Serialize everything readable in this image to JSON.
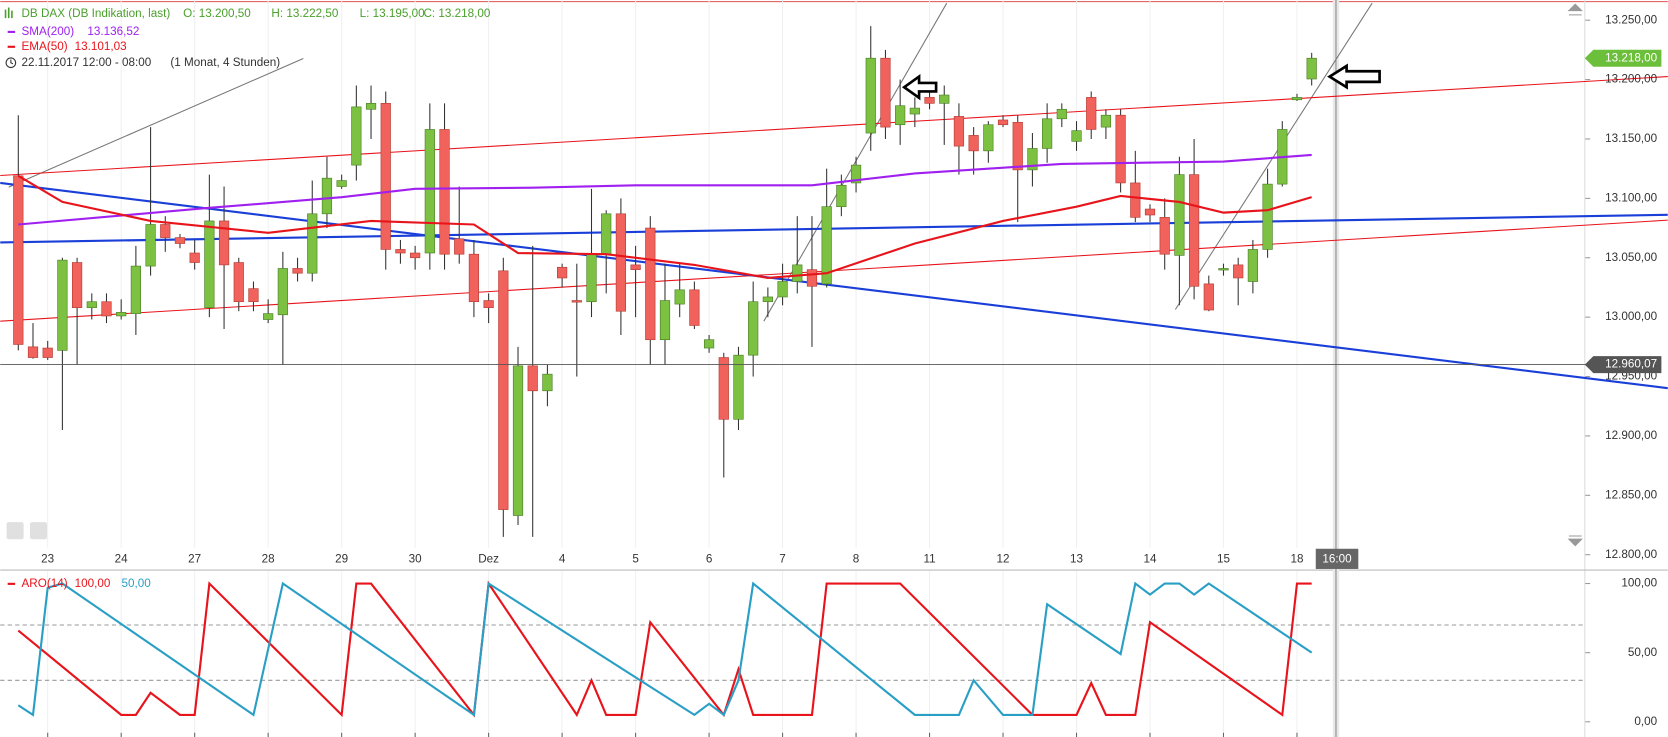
{
  "chart_data": {
    "type": "candlestick",
    "header": {
      "title": "DB DAX (DB Indikation, last)",
      "ohlc": [
        "O: 13.200,50",
        "H: 13.222,50",
        "L: 13.195,00",
        "C: 13.218,00"
      ],
      "date": "22.11.2017 12:00 - 08:00",
      "period": "(1 Monat, 4 Stunden)"
    },
    "categories": [
      null,
      null,
      "23",
      null,
      null,
      null,
      null,
      "24",
      null,
      null,
      null,
      null,
      "27",
      null,
      null,
      null,
      null,
      "28",
      null,
      null,
      null,
      null,
      "29",
      null,
      null,
      null,
      null,
      "30",
      null,
      null,
      null,
      null,
      "Dez",
      null,
      null,
      null,
      null,
      "4",
      null,
      null,
      null,
      null,
      "5",
      null,
      null,
      null,
      null,
      "6",
      null,
      null,
      null,
      null,
      "7",
      null,
      null,
      null,
      null,
      "8",
      null,
      null,
      null,
      null,
      "11",
      null,
      null,
      null,
      null,
      "12",
      null,
      null,
      null,
      null,
      "13",
      null,
      null,
      null,
      null,
      "14",
      null,
      null,
      null,
      null,
      "15",
      null,
      null,
      null,
      null,
      "18",
      null
    ],
    "open": [
      13119,
      12975,
      12974,
      12972,
      13046,
      13008,
      13013,
      13001,
      13003,
      13043,
      13078,
      13067,
      13054,
      13008,
      13081,
      13046,
      13024,
      12998,
      13002,
      13041,
      13037,
      13087,
      13110,
      13128,
      13175,
      13180,
      13057,
      13054,
      13054,
      13158,
      13066,
      13053,
      13014,
      13039,
      12833,
      12959,
      12938,
      13042,
      13014,
      13013,
      13053,
      13087,
      13044,
      13075,
      12981,
      13011,
      13023,
      12974,
      12966,
      12914,
      12968,
      13013,
      13017,
      13030,
      13040,
      13028,
      13093,
      13113,
      13155,
      13218,
      13162,
      13171,
      13185,
      13180,
      13169,
      13153,
      13140,
      13166,
      13164,
      13124,
      13142,
      13167,
      13148,
      13185,
      13160,
      13170,
      13113,
      13091,
      13084,
      13052,
      13120,
      13028,
      13041,
      13044,
      13030,
      13057,
      13112,
      13183,
      13200.5
    ],
    "high": [
      13170,
      12995,
      12980,
      13050,
      13050,
      13020,
      13020,
      13015,
      13060,
      13160,
      13085,
      13070,
      13065,
      13120,
      13110,
      13050,
      13030,
      13015,
      13055,
      13050,
      13115,
      13135,
      13120,
      13195,
      13195,
      13190,
      13065,
      13060,
      13180,
      13180,
      13110,
      13065,
      13020,
      13050,
      12975,
      13060,
      12960,
      13045,
      13045,
      13108,
      13090,
      13100,
      13060,
      13085,
      13045,
      13045,
      13030,
      12985,
      12970,
      12975,
      13030,
      13025,
      13045,
      13085,
      13085,
      13125,
      13120,
      13135,
      13245,
      13225,
      13200,
      13185,
      13190,
      13195,
      13180,
      13160,
      13165,
      13170,
      13170,
      13155,
      13180,
      13180,
      13165,
      13190,
      13175,
      13175,
      13140,
      13095,
      13100,
      13135,
      13150,
      13035,
      13045,
      13050,
      13065,
      13125,
      13165,
      13188,
      13222.5
    ],
    "low": [
      12972,
      12965,
      12964,
      12905,
      12960,
      12998,
      12995,
      12998,
      12985,
      13035,
      13055,
      13058,
      13040,
      13000,
      12990,
      13005,
      13005,
      12995,
      12960,
      13030,
      13030,
      13075,
      13108,
      13115,
      13150,
      13040,
      13045,
      13040,
      13040,
      13040,
      13045,
      13000,
      12995,
      12815,
      12825,
      12815,
      12925,
      13025,
      12950,
      13000,
      13020,
      12985,
      13000,
      12960,
      12960,
      13000,
      12990,
      12970,
      12865,
      12905,
      12950,
      13000,
      13010,
      13020,
      12975,
      13025,
      13085,
      13105,
      13140,
      13150,
      13145,
      13160,
      13175,
      13145,
      13120,
      13120,
      13130,
      13160,
      13080,
      13110,
      13130,
      13160,
      13140,
      13150,
      13150,
      13105,
      13080,
      13080,
      13040,
      13010,
      13015,
      13005,
      13035,
      13010,
      13020,
      13050,
      13110,
      13182,
      13195
    ],
    "close": [
      12977,
      12966,
      12966,
      13048,
      13008,
      13013,
      13001,
      13004,
      13043,
      13078,
      13067,
      13062,
      13046,
      13081,
      13044,
      13013,
      13013,
      13003,
      13041,
      13037,
      13087,
      13117,
      13115,
      13177,
      13180,
      13057,
      13054,
      13050,
      13158,
      13053,
      13053,
      13013,
      13008,
      12838,
      12959,
      12938,
      12952,
      13033,
      13013,
      13053,
      13087,
      13005,
      13040,
      12981,
      13014,
      13023,
      12993,
      12981,
      12914,
      12968,
      13013,
      13017,
      13030,
      13044,
      13026,
      13093,
      13111,
      13128,
      13218,
      13160,
      13178,
      13176,
      13180,
      13187,
      13144,
      13140,
      13162,
      13162,
      13124,
      13142,
      13167,
      13175,
      13157,
      13158,
      13170,
      13113,
      13084,
      13086,
      13053,
      13120,
      13026,
      13006,
      13041,
      13033,
      13057,
      13112,
      13158,
      13185,
      13218
    ],
    "up_color": "#7dc142",
    "down_color": "#f0625b",
    "overlays": [
      {
        "name": "SMA(200)",
        "value_label": "13.136,52",
        "color": "#a020f0",
        "x": [
          0,
          13,
          22,
          27,
          35,
          42,
          54,
          61,
          71,
          82,
          88
        ],
        "values": [
          13078,
          13092,
          13101,
          13108,
          13109,
          13111,
          13111,
          13121,
          13129,
          13131,
          13136.52
        ]
      },
      {
        "name": "EMA(50)",
        "value_label": "13.101,03",
        "color": "#e8141b",
        "x": [
          0,
          3,
          9,
          17,
          24,
          31,
          34,
          40,
          46,
          51,
          55,
          61,
          67,
          72,
          75,
          79,
          82,
          85,
          88
        ],
        "values": [
          13119,
          13097,
          13081,
          13071,
          13081,
          13078,
          13054,
          13053,
          13044,
          13033,
          13037,
          13062,
          13081,
          13093,
          13102,
          13097,
          13088,
          13090,
          13101.03
        ]
      }
    ],
    "ylim": [
      12788,
      13267
    ],
    "yticks": [
      {
        "value": 13250,
        "label": "13.250,00"
      },
      {
        "value": 13200,
        "label": "13.200,00"
      },
      {
        "value": 13150,
        "label": "13.150,00"
      },
      {
        "value": 13100,
        "label": "13.100,00"
      },
      {
        "value": 13050,
        "label": "13.050,00"
      },
      {
        "value": 13000,
        "label": "13.000,00"
      },
      {
        "value": 12950,
        "label": "12.950,00"
      },
      {
        "value": 12900,
        "label": "12.900,00"
      },
      {
        "value": 12850,
        "label": "12.850,00"
      },
      {
        "value": 12800,
        "label": "12.800,00"
      }
    ],
    "price_tags": [
      {
        "value": 13218,
        "label": "13.218,00",
        "color": "#6cbf3a"
      },
      {
        "value": 12960.07,
        "label": "12.960,07",
        "color": "#555555"
      }
    ],
    "time_label": "16:00",
    "indicator": {
      "name": "ARO(14)",
      "ylim": [
        -11,
        109
      ],
      "yticks": [
        {
          "value": 100,
          "label": "100,00"
        },
        {
          "value": 50,
          "label": "50,00"
        },
        {
          "value": 0,
          "label": "0,00"
        }
      ],
      "levels": [
        30,
        70
      ],
      "series": [
        {
          "value_label": "100,00",
          "color": "#e8141b",
          "x": [
            0,
            7,
            8,
            9,
            11,
            12,
            13,
            22,
            23,
            24,
            31,
            32,
            38,
            39,
            40,
            42,
            43,
            48,
            49,
            50,
            54,
            55,
            60,
            69,
            72,
            73,
            74,
            76,
            77,
            86,
            87,
            88
          ],
          "values": [
            66,
            5,
            5,
            21,
            5,
            5,
            100,
            5,
            100,
            100,
            5,
            100,
            5,
            30,
            5,
            5,
            72,
            5,
            38,
            5,
            5,
            100,
            100,
            5,
            5,
            28,
            5,
            5,
            72,
            5,
            100,
            100
          ]
        },
        {
          "value_label": "50,00",
          "color": "#2a9fc5",
          "x": [
            0,
            1,
            2,
            3,
            16,
            18,
            31,
            32,
            46,
            47,
            48,
            49,
            50,
            61,
            64,
            65,
            67,
            69,
            70,
            75,
            76,
            77,
            78,
            79,
            80,
            81,
            88
          ],
          "values": [
            12,
            5,
            97,
            100,
            5,
            100,
            5,
            100,
            5,
            13,
            5,
            30,
            100,
            5,
            5,
            30,
            5,
            5,
            85,
            49,
            100,
            92,
            100,
            100,
            92,
            100,
            50
          ]
        }
      ]
    }
  }
}
